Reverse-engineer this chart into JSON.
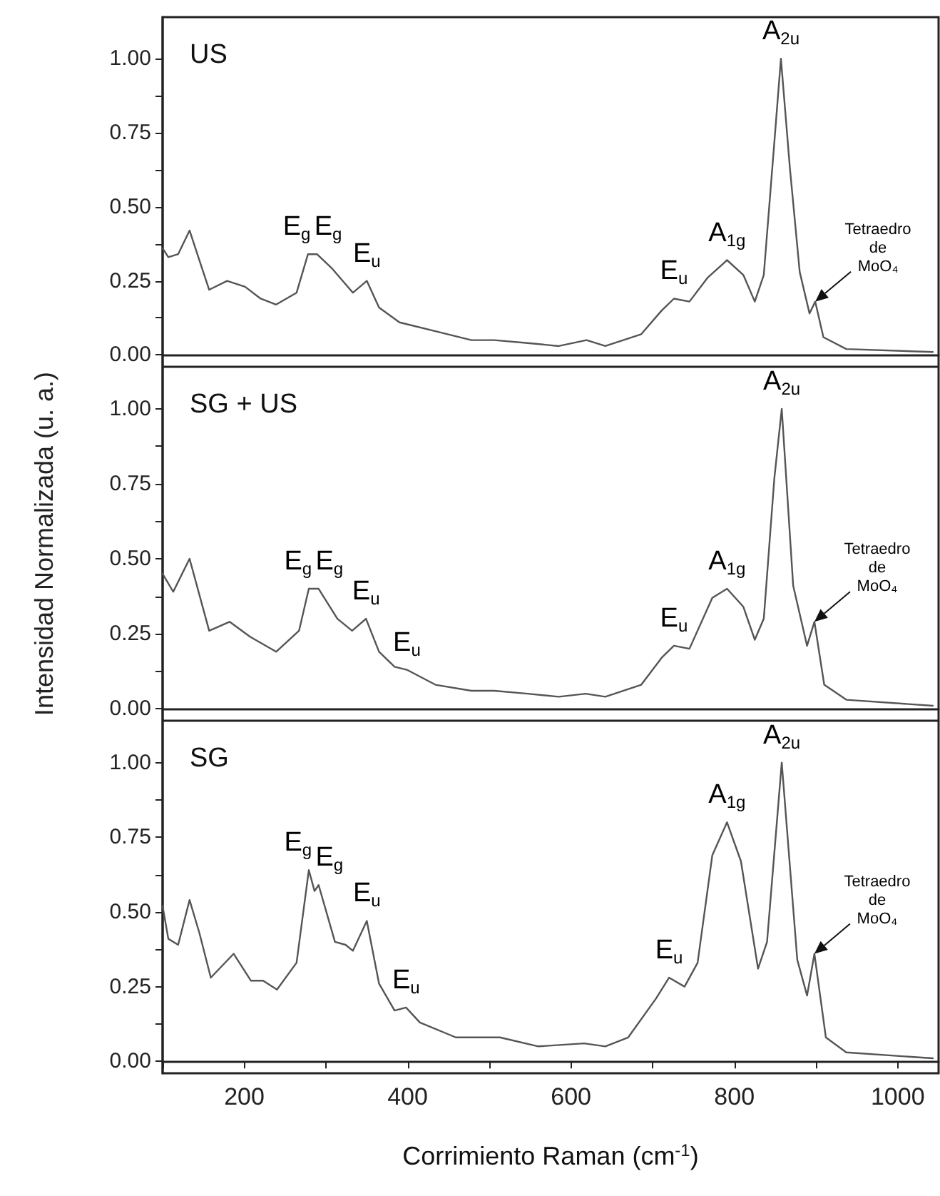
{
  "chart_data": [
    {
      "type": "line",
      "title": "US",
      "color": "#555555",
      "xlim": [
        100,
        1050
      ],
      "ylim": [
        -0.04,
        1.14
      ],
      "tick_labels": "y",
      "yticks": [
        {
          "value": 0,
          "label": "0.00"
        },
        {
          "value": 0.125,
          "label": null
        },
        {
          "value": 0.25,
          "label": "0.25"
        },
        {
          "value": 0.375,
          "label": null
        },
        {
          "value": 0.5,
          "label": "0.50"
        },
        {
          "value": 0.625,
          "label": null
        },
        {
          "value": 0.75,
          "label": "0.75"
        },
        {
          "value": 0.875,
          "label": null
        },
        {
          "value": 1,
          "label": "1.00"
        }
      ],
      "x": [
        100,
        107,
        119,
        133,
        145,
        157,
        179,
        201,
        220,
        239,
        264,
        278,
        289,
        308,
        333,
        350,
        365,
        390,
        434,
        478,
        506,
        547,
        585,
        619,
        642,
        686,
        711,
        726,
        745,
        767,
        791,
        811,
        825,
        836,
        849,
        857,
        868,
        880,
        892,
        899,
        909,
        937,
        1043
      ],
      "values": [
        0.36,
        0.33,
        0.34,
        0.42,
        0.32,
        0.22,
        0.25,
        0.23,
        0.19,
        0.17,
        0.21,
        0.34,
        0.34,
        0.29,
        0.21,
        0.25,
        0.16,
        0.11,
        0.08,
        0.05,
        0.05,
        0.04,
        0.03,
        0.05,
        0.03,
        0.07,
        0.15,
        0.19,
        0.18,
        0.26,
        0.32,
        0.27,
        0.18,
        0.27,
        0.72,
        1.0,
        0.63,
        0.28,
        0.14,
        0.18,
        0.06,
        0.02,
        0.01
      ],
      "annotations": [
        {
          "text": "E$_{g}$",
          "x": 278,
          "y": 0.34
        },
        {
          "text": "E$_{g}$",
          "x": 289,
          "y": 0.34
        },
        {
          "text": "E$_{u}$",
          "x": 350,
          "y": 0.25
        },
        {
          "text": "E$_{u}$",
          "x": 726,
          "y": 0.19
        },
        {
          "text": "A$_{1g}$",
          "x": 791,
          "y": 0.32
        },
        {
          "text": "A$_{2u}$",
          "x": 857,
          "y": 1.0
        },
        {
          "text": "Tetraedro\nde\nMoO₄",
          "x": 899,
          "y": 0.18
        }
      ]
    },
    {
      "type": "line",
      "title": "SG + US",
      "ylabel": "Intensidad Normalizada (u. a.)",
      "color": "#555555",
      "xlim": [
        100,
        1050
      ],
      "ylim": [
        -0.04,
        1.14
      ],
      "tick_labels": "y",
      "yticks": [
        {
          "value": 0,
          "label": "0.00"
        },
        {
          "value": 0.125,
          "label": null
        },
        {
          "value": 0.25,
          "label": "0.25"
        },
        {
          "value": 0.375,
          "label": null
        },
        {
          "value": 0.5,
          "label": "0.50"
        },
        {
          "value": 0.625,
          "label": null
        },
        {
          "value": 0.75,
          "label": "0.75"
        },
        {
          "value": 0.875,
          "label": null
        },
        {
          "value": 1,
          "label": "1.00"
        }
      ],
      "x": [
        100,
        113,
        133,
        157,
        182,
        207,
        239,
        267,
        279,
        291,
        314,
        332,
        349,
        365,
        384,
        399,
        434,
        478,
        506,
        547,
        585,
        618,
        642,
        686,
        711,
        726,
        745,
        773,
        791,
        811,
        825,
        836,
        849,
        858,
        872,
        889,
        898,
        910,
        937,
        1043
      ],
      "values": [
        0.45,
        0.39,
        0.5,
        0.26,
        0.29,
        0.24,
        0.19,
        0.26,
        0.4,
        0.4,
        0.3,
        0.26,
        0.3,
        0.19,
        0.14,
        0.13,
        0.08,
        0.06,
        0.06,
        0.05,
        0.04,
        0.05,
        0.04,
        0.08,
        0.17,
        0.21,
        0.2,
        0.37,
        0.4,
        0.34,
        0.23,
        0.3,
        0.77,
        1.0,
        0.41,
        0.21,
        0.29,
        0.08,
        0.03,
        0.01
      ],
      "annotations": [
        {
          "text": "E$_{g}$",
          "x": 279,
          "y": 0.4
        },
        {
          "text": "E$_{g}$",
          "x": 291,
          "y": 0.4
        },
        {
          "text": "E$_{u}$",
          "x": 349,
          "y": 0.3
        },
        {
          "text": "E$_{u}$",
          "x": 399,
          "y": 0.13
        },
        {
          "text": "E$_{u}$",
          "x": 726,
          "y": 0.21
        },
        {
          "text": "A$_{1g}$",
          "x": 791,
          "y": 0.4
        },
        {
          "text": "A$_{2u}$",
          "x": 858,
          "y": 1.0
        },
        {
          "text": "Tetraedro\nde\nMoO₄",
          "x": 898,
          "y": 0.29
        }
      ]
    },
    {
      "type": "line",
      "title": "SG",
      "xlabel": "Corrimiento Raman (cm$^{-1}$)",
      "color": "#555555",
      "xlim": [
        100,
        1050
      ],
      "ylim": [
        -0.04,
        1.14
      ],
      "xticks": [
        {
          "value": 100,
          "label": null
        },
        200,
        {
          "value": 300,
          "label": null
        },
        400,
        {
          "value": 500,
          "label": null
        },
        600,
        {
          "value": 700,
          "label": null
        },
        800,
        {
          "value": 900,
          "label": null
        },
        1000
      ],
      "yticks": [
        {
          "value": 0,
          "label": "0.00"
        },
        {
          "value": 0.125,
          "label": null
        },
        {
          "value": 0.25,
          "label": "0.25"
        },
        {
          "value": 0.375,
          "label": null
        },
        {
          "value": 0.5,
          "label": "0.50"
        },
        {
          "value": 0.625,
          "label": null
        },
        {
          "value": 0.75,
          "label": "0.75"
        },
        {
          "value": 0.875,
          "label": null
        },
        {
          "value": 1,
          "label": "1.00"
        }
      ],
      "x": [
        100,
        107,
        119,
        133,
        145,
        159,
        187,
        208,
        223,
        240,
        264,
        279,
        286,
        291,
        311,
        324,
        333,
        350,
        365,
        384,
        398,
        415,
        459,
        513,
        560,
        616,
        642,
        670,
        704,
        720,
        739,
        755,
        773,
        791,
        808,
        829,
        840,
        858,
        877,
        889,
        898,
        912,
        937,
        1043
      ],
      "values": [
        0.52,
        0.41,
        0.39,
        0.54,
        0.43,
        0.28,
        0.36,
        0.27,
        0.27,
        0.24,
        0.33,
        0.64,
        0.57,
        0.59,
        0.4,
        0.39,
        0.37,
        0.47,
        0.26,
        0.17,
        0.18,
        0.13,
        0.08,
        0.08,
        0.05,
        0.06,
        0.05,
        0.08,
        0.21,
        0.28,
        0.25,
        0.33,
        0.69,
        0.8,
        0.67,
        0.31,
        0.4,
        1.0,
        0.34,
        0.22,
        0.36,
        0.08,
        0.03,
        0.01
      ],
      "annotations": [
        {
          "text": "E$_{g}$",
          "x": 279,
          "y": 0.64
        },
        {
          "text": "E$_{g}$",
          "x": 291,
          "y": 0.59
        },
        {
          "text": "E$_{u}$",
          "x": 350,
          "y": 0.47
        },
        {
          "text": "E$_{u}$",
          "x": 398,
          "y": 0.18
        },
        {
          "text": "E$_{u}$",
          "x": 720,
          "y": 0.28
        },
        {
          "text": "A$_{1g}$",
          "x": 791,
          "y": 0.8
        },
        {
          "text": "A$_{2u}$",
          "x": 858,
          "y": 1.0
        },
        {
          "text": "Tetraedro\nde\nMoO₄",
          "x": 898,
          "y": 0.36
        }
      ]
    }
  ]
}
